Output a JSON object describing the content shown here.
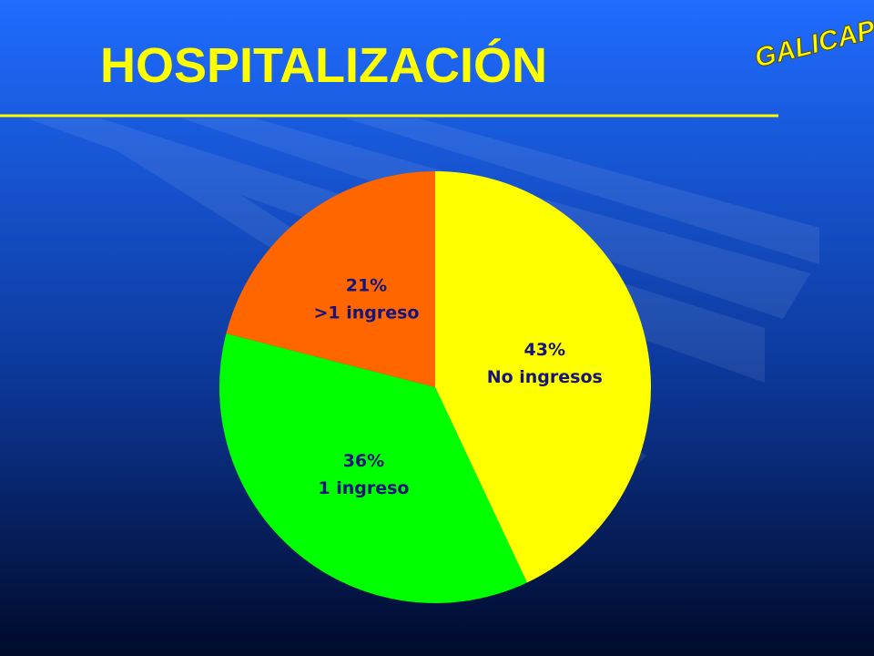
{
  "logo": "GALICAP",
  "chart_data": {
    "type": "pie",
    "title": "HOSPITALIZACIÓN",
    "categories": [
      "No ingresos",
      "1 ingreso",
      ">1 ingreso"
    ],
    "values": [
      43,
      36,
      21
    ],
    "value_labels": [
      "43%",
      "36%",
      "21%"
    ],
    "colors": [
      "#ffff00",
      "#00ff00",
      "#ff6600"
    ]
  }
}
